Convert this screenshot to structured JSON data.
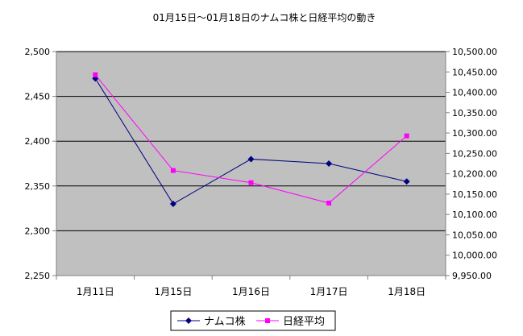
{
  "chart_data": {
    "type": "line",
    "title": "01月15日～01月18日のナムコ株と日経平均の動き",
    "categories": [
      "1月11日",
      "1月15日",
      "1月16日",
      "1月17日",
      "1月18日"
    ],
    "y_left": {
      "ylim": [
        2250,
        2500
      ],
      "ticks": [
        2250,
        2300,
        2350,
        2400,
        2450,
        2500
      ],
      "tick_labels": [
        "2,250",
        "2,300",
        "2,350",
        "2,400",
        "2,450",
        "2,500"
      ]
    },
    "y_right": {
      "ylim": [
        9950,
        10500
      ],
      "ticks": [
        9950,
        10000,
        10050,
        10100,
        10150,
        10200,
        10250,
        10300,
        10350,
        10400,
        10450,
        10500
      ],
      "tick_labels": [
        "9,950.00",
        "10,000.00",
        "10,050.00",
        "10,100.00",
        "10,150.00",
        "10,200.00",
        "10,250.00",
        "10,300.00",
        "10,350.00",
        "10,400.00",
        "10,450.00",
        "10,500.00"
      ]
    },
    "grid": true,
    "legend_position": "bottom",
    "series": [
      {
        "name": "ナムコ株",
        "axis": "left",
        "color": "#000080",
        "marker": "diamond",
        "values": [
          2470,
          2330,
          2380,
          2375,
          2355
        ]
      },
      {
        "name": "日経平均",
        "axis": "right",
        "color": "#ff00ff",
        "marker": "square",
        "values": [
          10443,
          10208,
          10178,
          10128,
          10293
        ]
      }
    ],
    "colors": {
      "plot_background": "#c0c0c0",
      "gridline": "#000000"
    }
  }
}
